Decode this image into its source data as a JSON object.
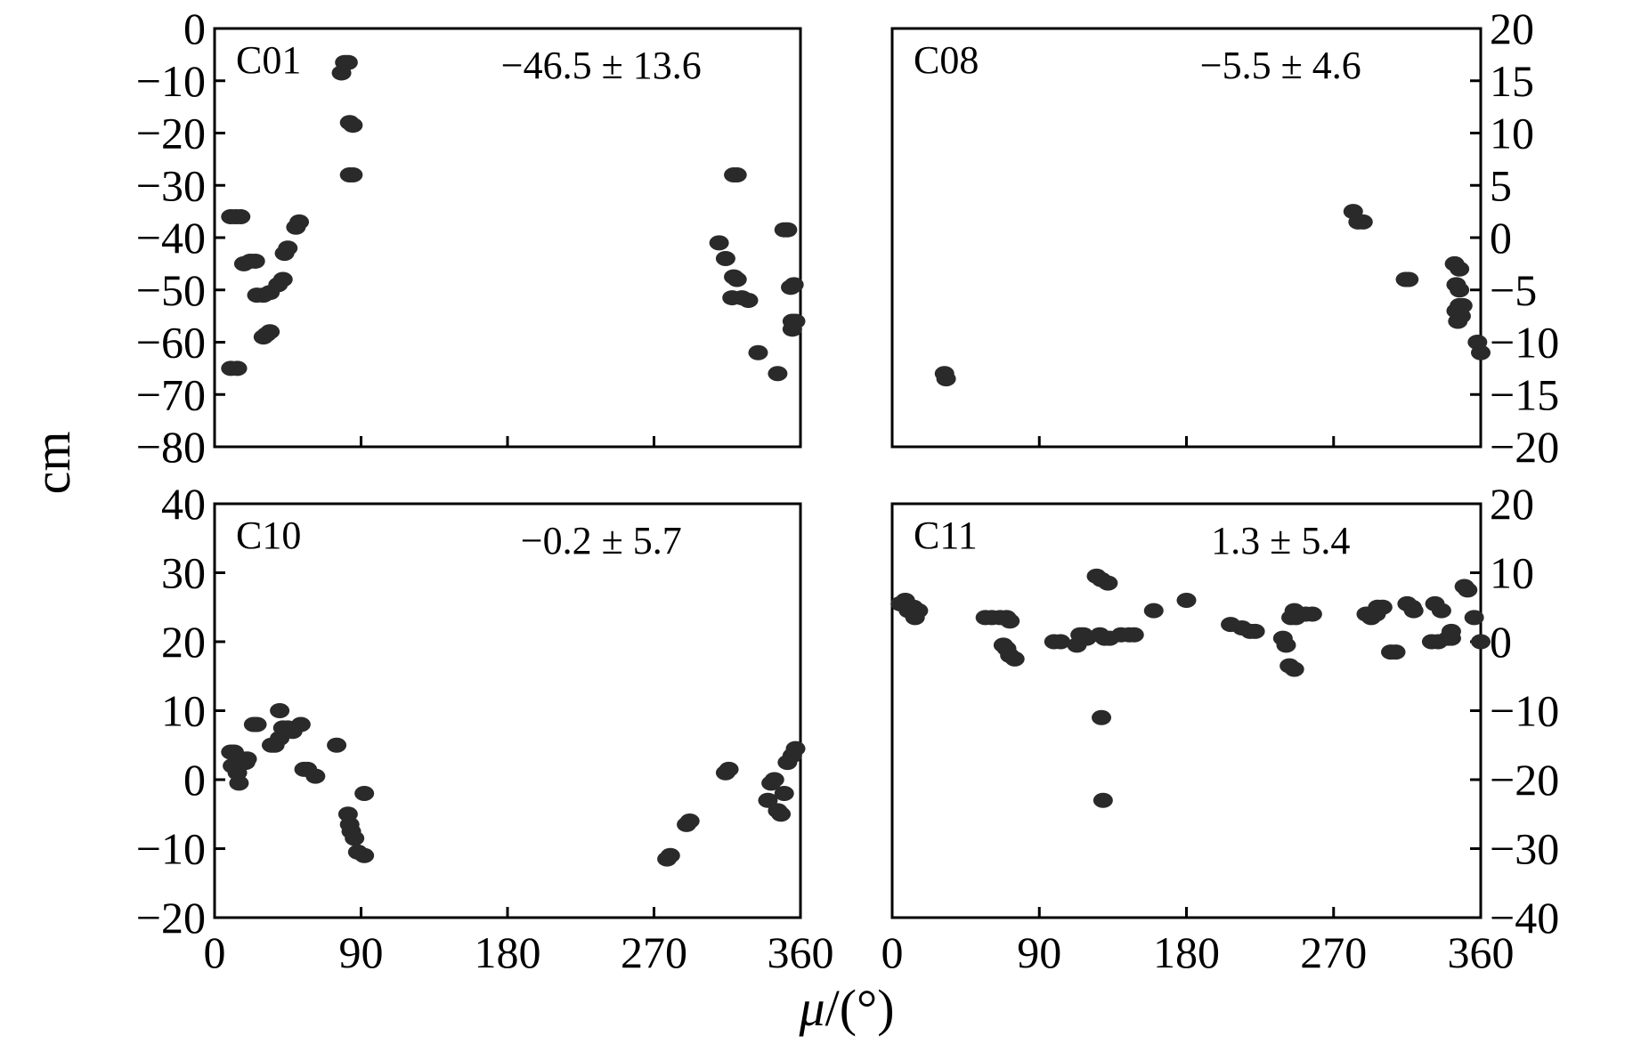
{
  "figure": {
    "ylabel": "cm",
    "xlabel_symbol": "μ",
    "xlabel_unit": "/(°)"
  },
  "chart_data": [
    {
      "type": "scatter",
      "title": "C01",
      "annotation": "−46.5 ± 13.6",
      "xlim": [
        0,
        360
      ],
      "ylim": [
        -80,
        0
      ],
      "y_axis_side": "left",
      "x_ticks": [
        0,
        90,
        180,
        270,
        360
      ],
      "y_ticks": [
        0,
        -10,
        -20,
        -30,
        -40,
        -50,
        -60,
        -70,
        -80
      ],
      "y_tick_labels": [
        "0",
        "−10",
        "−20",
        "−30",
        "−40",
        "−50",
        "−60",
        "−70",
        "−80"
      ],
      "x_tick_labels_shown": false,
      "points": [
        [
          10,
          -36
        ],
        [
          13,
          -36
        ],
        [
          16,
          -36
        ],
        [
          10,
          -65
        ],
        [
          14,
          -65
        ],
        [
          18,
          -45
        ],
        [
          22,
          -44.5
        ],
        [
          25,
          -44.5
        ],
        [
          26,
          -51
        ],
        [
          30,
          -51
        ],
        [
          34,
          -50.5
        ],
        [
          30,
          -59
        ],
        [
          32,
          -58.5
        ],
        [
          34,
          -58
        ],
        [
          39,
          -49
        ],
        [
          42,
          -48
        ],
        [
          43,
          -43
        ],
        [
          45,
          -42
        ],
        [
          50,
          -38
        ],
        [
          52,
          -37
        ],
        [
          78,
          -8.5
        ],
        [
          80,
          -6.5
        ],
        [
          82,
          -6.5
        ],
        [
          83,
          -18
        ],
        [
          85,
          -18.5
        ],
        [
          83,
          -28
        ],
        [
          85,
          -28
        ],
        [
          310,
          -41
        ],
        [
          314,
          -44
        ],
        [
          319,
          -47.5
        ],
        [
          321,
          -48
        ],
        [
          318,
          -51.5
        ],
        [
          324,
          -51.5
        ],
        [
          328,
          -52
        ],
        [
          319,
          -28
        ],
        [
          321,
          -28
        ],
        [
          334,
          -62
        ],
        [
          346,
          -66
        ],
        [
          350,
          -38.5
        ],
        [
          352,
          -38.5
        ],
        [
          354,
          -49.5
        ],
        [
          356,
          -49
        ],
        [
          355,
          -56
        ],
        [
          357,
          -56
        ],
        [
          355,
          -57.5
        ]
      ]
    },
    {
      "type": "scatter",
      "title": "C08",
      "annotation": "−5.5 ± 4.6",
      "xlim": [
        0,
        360
      ],
      "ylim": [
        -20,
        20
      ],
      "y_axis_side": "right",
      "x_ticks": [
        0,
        90,
        180,
        270,
        360
      ],
      "y_ticks": [
        20,
        15,
        10,
        5,
        0,
        -5,
        -10,
        -15,
        -20
      ],
      "y_tick_labels": [
        "20",
        "15",
        "10",
        "5",
        "0",
        "−5",
        "−10",
        "−15",
        "−20"
      ],
      "x_tick_labels_shown": false,
      "points": [
        [
          32,
          -13
        ],
        [
          33,
          -13.5
        ],
        [
          282,
          2.5
        ],
        [
          285,
          1.5
        ],
        [
          288,
          1.5
        ],
        [
          314,
          -4
        ],
        [
          316,
          -4
        ],
        [
          344,
          -2.5
        ],
        [
          347,
          -3
        ],
        [
          345,
          -4.5
        ],
        [
          347,
          -5
        ],
        [
          347,
          -6.5
        ],
        [
          345,
          -7
        ],
        [
          348,
          -7.5
        ],
        [
          349,
          -6.5
        ],
        [
          346,
          -8
        ],
        [
          358,
          -10
        ],
        [
          360,
          -11
        ]
      ]
    },
    {
      "type": "scatter",
      "title": "C10",
      "annotation": "−0.2 ± 5.7",
      "xlim": [
        0,
        360
      ],
      "ylim": [
        -20,
        40
      ],
      "y_axis_side": "left",
      "x_ticks": [
        0,
        90,
        180,
        270,
        360
      ],
      "x_tick_labels": [
        "0",
        "90",
        "180",
        "270",
        "360"
      ],
      "y_ticks": [
        40,
        30,
        20,
        10,
        0,
        -10,
        -20
      ],
      "y_tick_labels": [
        "40",
        "30",
        "20",
        "10",
        "0",
        "−10",
        "−20"
      ],
      "points": [
        [
          10,
          4
        ],
        [
          12,
          4
        ],
        [
          11,
          2
        ],
        [
          14,
          1
        ],
        [
          15,
          -0.5
        ],
        [
          17,
          3
        ],
        [
          19,
          2.5
        ],
        [
          20,
          3
        ],
        [
          24,
          8
        ],
        [
          26,
          8
        ],
        [
          35,
          5
        ],
        [
          37,
          5
        ],
        [
          40,
          6
        ],
        [
          40,
          10
        ],
        [
          42,
          7.5
        ],
        [
          45,
          7.5
        ],
        [
          48,
          7
        ],
        [
          53,
          8
        ],
        [
          55,
          1.5
        ],
        [
          57,
          1.5
        ],
        [
          62,
          0.5
        ],
        [
          75,
          5
        ],
        [
          82,
          -5
        ],
        [
          83,
          -6.5
        ],
        [
          84,
          -7.5
        ],
        [
          86,
          -8.5
        ],
        [
          88,
          -10.5
        ],
        [
          92,
          -11
        ],
        [
          92,
          -2
        ],
        [
          278,
          -11.5
        ],
        [
          280,
          -11
        ],
        [
          290,
          -6.5
        ],
        [
          292,
          -6
        ],
        [
          314,
          1
        ],
        [
          316,
          1.5
        ],
        [
          340,
          -3
        ],
        [
          342,
          -0.5
        ],
        [
          344,
          0
        ],
        [
          346,
          -4.5
        ],
        [
          348,
          -5
        ],
        [
          350,
          -2
        ],
        [
          352,
          2.5
        ],
        [
          355,
          3.5
        ],
        [
          357,
          4.5
        ]
      ]
    },
    {
      "type": "scatter",
      "title": "C11",
      "annotation": "1.3 ± 5.4",
      "xlim": [
        0,
        360
      ],
      "ylim": [
        -40,
        20
      ],
      "y_axis_side": "right",
      "x_ticks": [
        0,
        90,
        180,
        270,
        360
      ],
      "x_tick_labels": [
        "0",
        "90",
        "180",
        "270",
        "360"
      ],
      "y_ticks": [
        20,
        10,
        0,
        -10,
        -20,
        -30,
        -40
      ],
      "y_tick_labels": [
        "20",
        "10",
        "0",
        "−10",
        "−20",
        "−30",
        "−40"
      ],
      "points": [
        [
          5,
          5.5
        ],
        [
          8,
          6
        ],
        [
          10,
          4.5
        ],
        [
          13,
          5
        ],
        [
          14,
          3.5
        ],
        [
          16,
          4.5
        ],
        [
          57,
          3.5
        ],
        [
          61,
          3.5
        ],
        [
          66,
          3.5
        ],
        [
          70,
          3.5
        ],
        [
          72,
          3
        ],
        [
          68,
          -0.5
        ],
        [
          70,
          -1
        ],
        [
          72,
          -2
        ],
        [
          75,
          -2.5
        ],
        [
          99,
          0
        ],
        [
          103,
          0
        ],
        [
          115,
          1
        ],
        [
          117,
          1
        ],
        [
          119,
          0.5
        ],
        [
          113,
          -0.5
        ],
        [
          125,
          9.5
        ],
        [
          128,
          9
        ],
        [
          132,
          8.5
        ],
        [
          127,
          1
        ],
        [
          130,
          0.5
        ],
        [
          133,
          0.5
        ],
        [
          140,
          1
        ],
        [
          145,
          1
        ],
        [
          148,
          1
        ],
        [
          128,
          -11
        ],
        [
          129,
          -23
        ],
        [
          160,
          4.5
        ],
        [
          180,
          6
        ],
        [
          207,
          2.5
        ],
        [
          214,
          2
        ],
        [
          219,
          1.5
        ],
        [
          222,
          1.5
        ],
        [
          239,
          0.5
        ],
        [
          241,
          -0.5
        ],
        [
          246,
          4.5
        ],
        [
          244,
          3.5
        ],
        [
          247,
          3.5
        ],
        [
          253,
          4
        ],
        [
          257,
          4
        ],
        [
          243,
          -3.5
        ],
        [
          246,
          -4
        ],
        [
          290,
          4
        ],
        [
          293,
          3.5
        ],
        [
          296,
          4
        ],
        [
          297,
          5
        ],
        [
          300,
          5
        ],
        [
          305,
          -1.5
        ],
        [
          308,
          -1.5
        ],
        [
          315,
          5.5
        ],
        [
          318,
          5
        ],
        [
          319,
          4.5
        ],
        [
          330,
          0
        ],
        [
          334,
          0
        ],
        [
          332,
          5.5
        ],
        [
          336,
          4.5
        ],
        [
          340,
          0.5
        ],
        [
          342,
          0.5
        ],
        [
          342,
          1.5
        ],
        [
          350,
          8
        ],
        [
          352,
          7.5
        ],
        [
          356,
          3.5
        ],
        [
          360,
          0
        ]
      ]
    }
  ]
}
